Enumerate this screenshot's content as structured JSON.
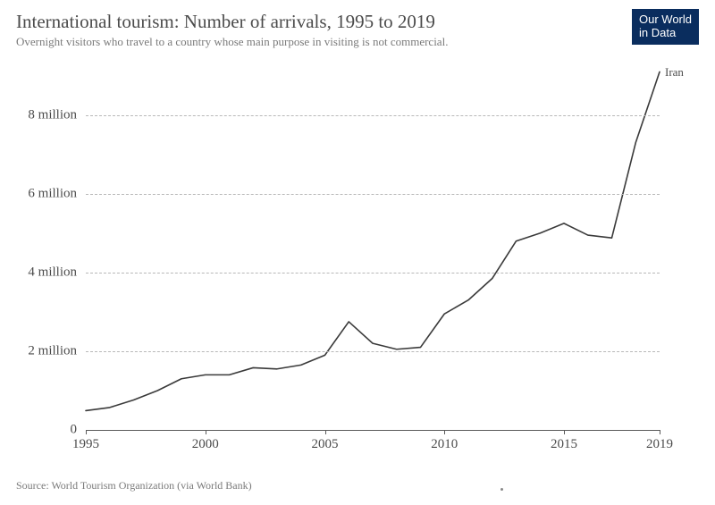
{
  "header": {
    "title": "International tourism: Number of arrivals, 1995 to 2019",
    "subtitle": "Overnight visitors who travel to a country whose main purpose in visiting is not commercial.",
    "logo_line1": "Our World",
    "logo_line2": "in Data"
  },
  "chart": {
    "type": "line",
    "background_color": "#ffffff",
    "grid_color": "#b8b8b8",
    "axis_color": "#5a5a5a",
    "text_color": "#4b4b4b",
    "label_fontsize": 15,
    "x": {
      "min": 1995,
      "max": 2019,
      "ticks": [
        1995,
        2000,
        2005,
        2010,
        2015,
        2019
      ]
    },
    "y": {
      "min": 0,
      "max": 9200000,
      "ticks": [
        {
          "value": 0,
          "label": "0"
        },
        {
          "value": 2000000,
          "label": "2 million"
        },
        {
          "value": 4000000,
          "label": "4 million"
        },
        {
          "value": 6000000,
          "label": "6 million"
        },
        {
          "value": 8000000,
          "label": "8 million"
        }
      ]
    },
    "series": [
      {
        "name": "Iran",
        "label": "Iran",
        "stroke": "#3a3a3a",
        "stroke_width": 1.6,
        "halo_stroke": "#ffffff",
        "halo_width": 3.2,
        "points": [
          {
            "x": 1995,
            "y": 490000
          },
          {
            "x": 1996,
            "y": 570000
          },
          {
            "x": 1997,
            "y": 760000
          },
          {
            "x": 1998,
            "y": 1000000
          },
          {
            "x": 1999,
            "y": 1300000
          },
          {
            "x": 2000,
            "y": 1400000
          },
          {
            "x": 2001,
            "y": 1400000
          },
          {
            "x": 2002,
            "y": 1580000
          },
          {
            "x": 2003,
            "y": 1550000
          },
          {
            "x": 2004,
            "y": 1650000
          },
          {
            "x": 2005,
            "y": 1900000
          },
          {
            "x": 2006,
            "y": 2750000
          },
          {
            "x": 2007,
            "y": 2200000
          },
          {
            "x": 2008,
            "y": 2050000
          },
          {
            "x": 2009,
            "y": 2100000
          },
          {
            "x": 2010,
            "y": 2950000
          },
          {
            "x": 2011,
            "y": 3300000
          },
          {
            "x": 2012,
            "y": 3850000
          },
          {
            "x": 2013,
            "y": 4800000
          },
          {
            "x": 2014,
            "y": 5000000
          },
          {
            "x": 2015,
            "y": 5250000
          },
          {
            "x": 2016,
            "y": 4950000
          },
          {
            "x": 2017,
            "y": 4880000
          },
          {
            "x": 2018,
            "y": 7300000
          },
          {
            "x": 2019,
            "y": 9100000
          }
        ]
      }
    ]
  },
  "footer": {
    "source": "Source: World Tourism Organization (via World Bank)"
  }
}
